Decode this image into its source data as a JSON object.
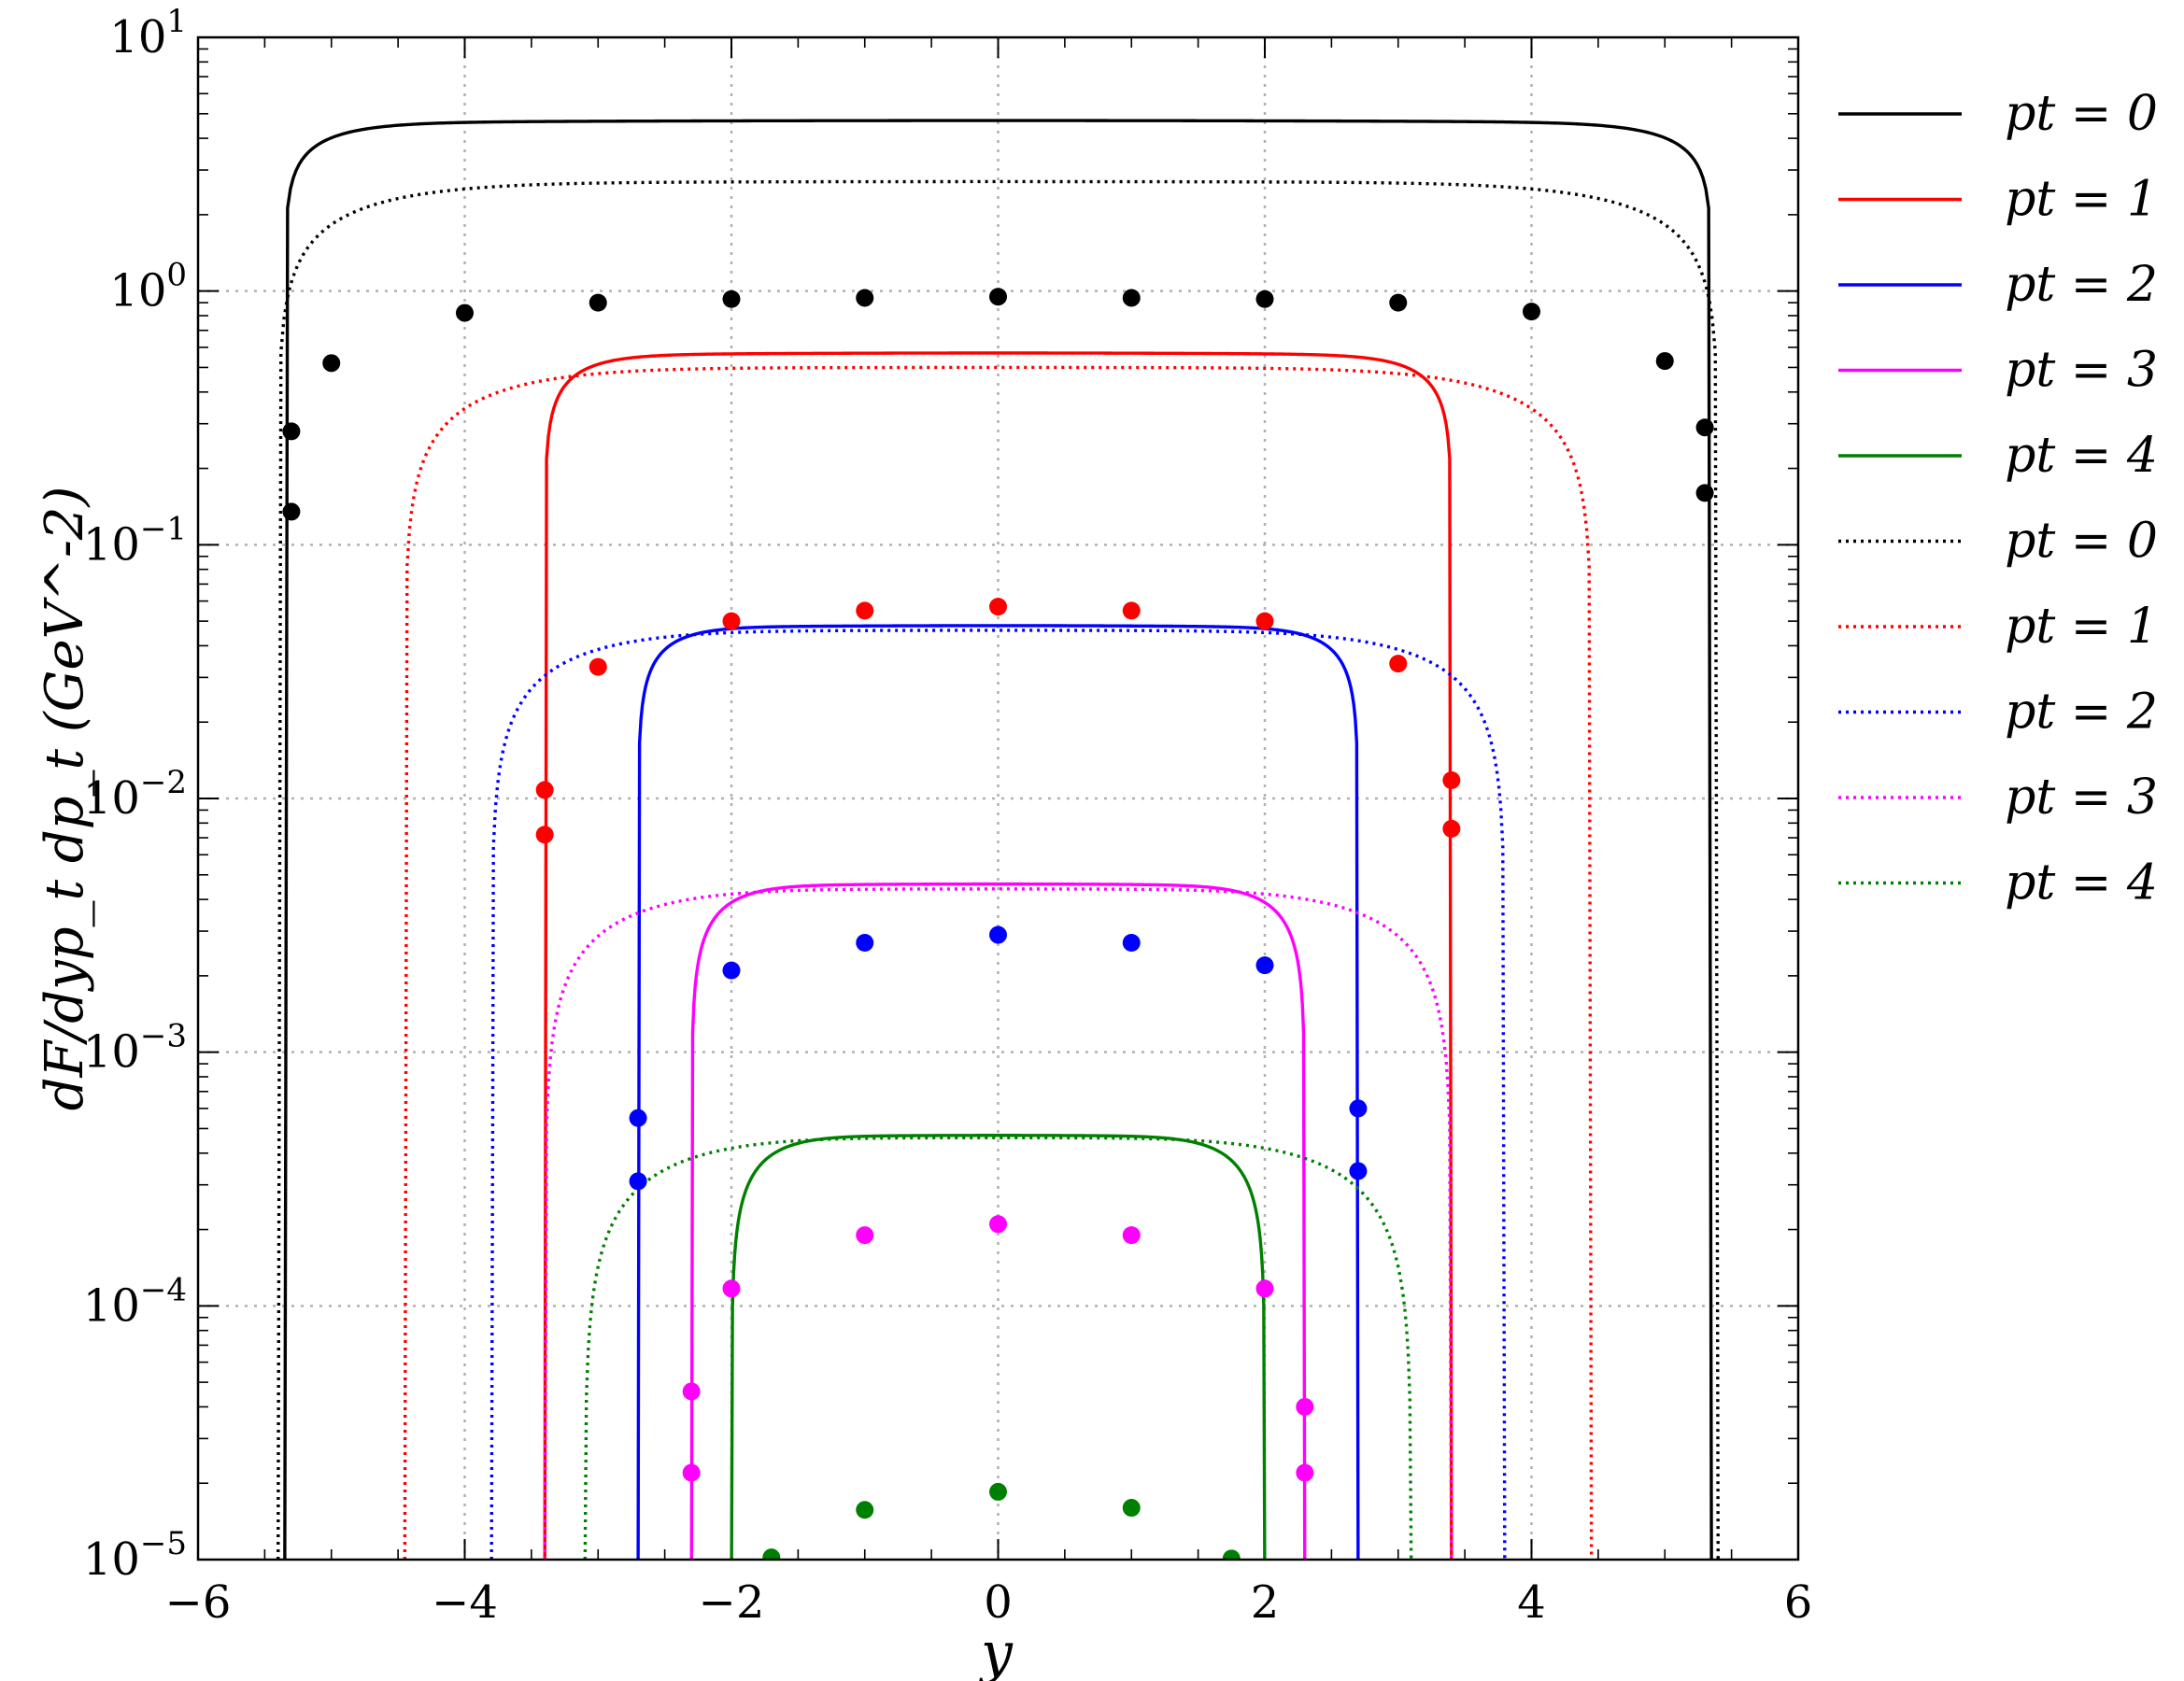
{
  "chart_data": {
    "type": "line",
    "xlabel": "y",
    "ylabel": "dF/dyp_t dp_t  (GeV^-2)",
    "xlim": [
      -6,
      6
    ],
    "ylim": [
      1e-05,
      10
    ],
    "yscale": "log",
    "grid": true,
    "legend_position": "right",
    "x_ticks": [
      -6,
      -4,
      -2,
      0,
      2,
      4,
      6
    ],
    "x_tick_labels": [
      "−6",
      "−4",
      "−2",
      "0",
      "2",
      "4",
      "6"
    ],
    "y_ticks": [
      1e-05,
      0.0001,
      0.001,
      0.01,
      0.1,
      1,
      10
    ],
    "y_tick_labels": [
      {
        "base": "10",
        "exp": "−5"
      },
      {
        "base": "10",
        "exp": "−4"
      },
      {
        "base": "10",
        "exp": "−3"
      },
      {
        "base": "10",
        "exp": "−2"
      },
      {
        "base": "10",
        "exp": "−1"
      },
      {
        "base": "10",
        "exp": "0"
      },
      {
        "base": "10",
        "exp": "1"
      }
    ],
    "series": [
      {
        "name": "pt = 0",
        "style": "solid",
        "color": "#000000",
        "peak": 4.7,
        "edge": 5.35,
        "k": 13
      },
      {
        "name": "pt = 1",
        "style": "solid",
        "color": "#ff0000",
        "peak": 0.57,
        "edge": 3.4,
        "k": 11
      },
      {
        "name": "pt = 2",
        "style": "solid",
        "color": "#0000ff",
        "peak": 0.048,
        "edge": 2.7,
        "k": 10
      },
      {
        "name": "pt = 3",
        "style": "solid",
        "color": "#ff00ff",
        "peak": 0.0046,
        "edge": 2.3,
        "k": 8
      },
      {
        "name": "pt = 4",
        "style": "solid",
        "color": "#008000",
        "peak": 0.00047,
        "edge": 2.0,
        "k": 7
      },
      {
        "name": "pt = 0",
        "style": "dotted",
        "color": "#000000",
        "peak": 2.7,
        "edge": 5.4,
        "k": 7
      },
      {
        "name": "pt = 1",
        "style": "dotted",
        "color": "#ff0000",
        "peak": 0.5,
        "edge": 4.45,
        "k": 6
      },
      {
        "name": "pt = 2",
        "style": "dotted",
        "color": "#0000ff",
        "peak": 0.046,
        "edge": 3.8,
        "k": 5.5
      },
      {
        "name": "pt = 3",
        "style": "dotted",
        "color": "#ff00ff",
        "peak": 0.0044,
        "edge": 3.4,
        "k": 5
      },
      {
        "name": "pt = 4",
        "style": "dotted",
        "color": "#008000",
        "peak": 0.00046,
        "edge": 3.1,
        "k": 4.5
      }
    ],
    "points": [
      {
        "color": "#000000",
        "data": [
          [
            -5.3,
            0.135
          ],
          [
            -5.3,
            0.28
          ],
          [
            -5.0,
            0.52
          ],
          [
            -4.0,
            0.82
          ],
          [
            -3.0,
            0.9
          ],
          [
            -2.0,
            0.93
          ],
          [
            -1.0,
            0.94
          ],
          [
            0,
            0.95
          ],
          [
            1.0,
            0.94
          ],
          [
            2.0,
            0.93
          ],
          [
            3.0,
            0.9
          ],
          [
            4.0,
            0.83
          ],
          [
            5.0,
            0.53
          ],
          [
            5.3,
            0.29
          ],
          [
            5.3,
            0.16
          ]
        ]
      },
      {
        "color": "#ff0000",
        "data": [
          [
            -3.4,
            0.0072
          ],
          [
            -3.4,
            0.0108
          ],
          [
            -3.0,
            0.033
          ],
          [
            -2.0,
            0.05
          ],
          [
            -1.0,
            0.055
          ],
          [
            0,
            0.057
          ],
          [
            1.0,
            0.055
          ],
          [
            2.0,
            0.05
          ],
          [
            3.0,
            0.034
          ],
          [
            3.4,
            0.0118
          ],
          [
            3.4,
            0.0076
          ]
        ]
      },
      {
        "color": "#0000ff",
        "data": [
          [
            -2.7,
            0.00031
          ],
          [
            -2.7,
            0.00055
          ],
          [
            -2.0,
            0.0021
          ],
          [
            -1.0,
            0.0027
          ],
          [
            0,
            0.0029
          ],
          [
            1.0,
            0.0027
          ],
          [
            2.0,
            0.0022
          ],
          [
            2.7,
            0.0006
          ],
          [
            2.7,
            0.00034
          ]
        ]
      },
      {
        "color": "#ff00ff",
        "data": [
          [
            -2.3,
            2.2e-05
          ],
          [
            -2.3,
            4.6e-05
          ],
          [
            -2.0,
            0.000117
          ],
          [
            -1.0,
            0.00019
          ],
          [
            0,
            0.00021
          ],
          [
            1.0,
            0.00019
          ],
          [
            2.0,
            0.000117
          ],
          [
            2.3,
            4e-05
          ],
          [
            2.3,
            2.2e-05
          ]
        ]
      },
      {
        "color": "#008000",
        "data": [
          [
            -1.7,
            1.02e-05
          ],
          [
            -1.0,
            1.57e-05
          ],
          [
            0,
            1.85e-05
          ],
          [
            1.0,
            1.6e-05
          ],
          [
            1.75,
            1.01e-05
          ]
        ]
      }
    ]
  }
}
